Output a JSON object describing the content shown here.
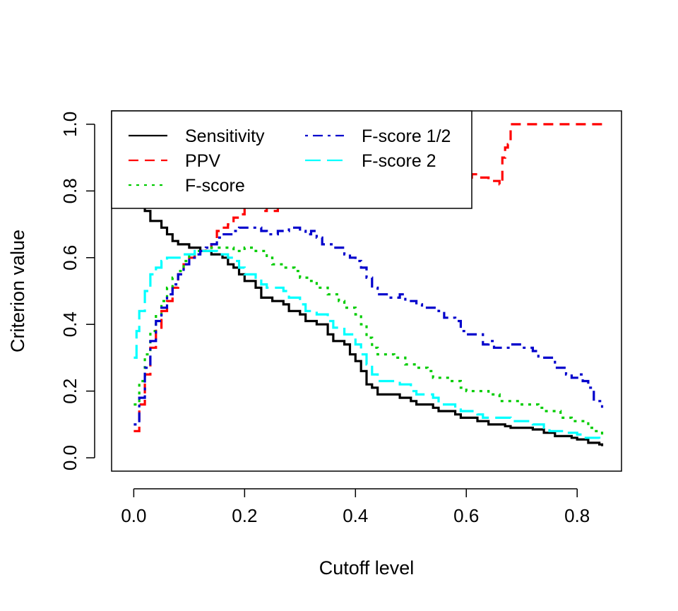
{
  "chart_data": {
    "type": "line",
    "title": "",
    "xlabel": "Cutoff level",
    "ylabel": "Criterion value",
    "xlim": [
      -0.04,
      0.88
    ],
    "ylim": [
      -0.04,
      1.04
    ],
    "x_ticks": [
      0.0,
      0.2,
      0.4,
      0.6,
      0.8
    ],
    "x_tick_labels": [
      "0.0",
      "0.2",
      "0.4",
      "0.6",
      "0.8"
    ],
    "y_ticks": [
      0.0,
      0.2,
      0.4,
      0.6,
      0.8,
      1.0
    ],
    "y_tick_labels": [
      "0.0",
      "0.2",
      "0.4",
      "0.6",
      "0.8",
      "1.0"
    ],
    "grid": false,
    "legend": {
      "position": "top-left",
      "columns": 2
    },
    "series": [
      {
        "name": "Sensitivity",
        "color": "#000000",
        "dash": "solid",
        "points": [
          [
            0.0,
            0.78
          ],
          [
            0.01,
            0.76
          ],
          [
            0.02,
            0.74
          ],
          [
            0.03,
            0.71
          ],
          [
            0.04,
            0.71
          ],
          [
            0.05,
            0.69
          ],
          [
            0.06,
            0.67
          ],
          [
            0.07,
            0.65
          ],
          [
            0.08,
            0.64
          ],
          [
            0.09,
            0.64
          ],
          [
            0.1,
            0.63
          ],
          [
            0.12,
            0.62
          ],
          [
            0.14,
            0.61
          ],
          [
            0.15,
            0.61
          ],
          [
            0.16,
            0.6
          ],
          [
            0.17,
            0.58
          ],
          [
            0.18,
            0.57
          ],
          [
            0.19,
            0.55
          ],
          [
            0.2,
            0.53
          ],
          [
            0.22,
            0.51
          ],
          [
            0.23,
            0.48
          ],
          [
            0.25,
            0.47
          ],
          [
            0.27,
            0.46
          ],
          [
            0.28,
            0.44
          ],
          [
            0.3,
            0.43
          ],
          [
            0.31,
            0.41
          ],
          [
            0.33,
            0.4
          ],
          [
            0.35,
            0.37
          ],
          [
            0.36,
            0.35
          ],
          [
            0.38,
            0.34
          ],
          [
            0.39,
            0.31
          ],
          [
            0.4,
            0.29
          ],
          [
            0.41,
            0.26
          ],
          [
            0.42,
            0.22
          ],
          [
            0.43,
            0.21
          ],
          [
            0.44,
            0.19
          ],
          [
            0.47,
            0.19
          ],
          [
            0.48,
            0.18
          ],
          [
            0.5,
            0.17
          ],
          [
            0.51,
            0.16
          ],
          [
            0.54,
            0.15
          ],
          [
            0.55,
            0.14
          ],
          [
            0.58,
            0.13
          ],
          [
            0.59,
            0.12
          ],
          [
            0.62,
            0.11
          ],
          [
            0.64,
            0.1
          ],
          [
            0.67,
            0.095
          ],
          [
            0.68,
            0.09
          ],
          [
            0.72,
            0.085
          ],
          [
            0.74,
            0.075
          ],
          [
            0.76,
            0.065
          ],
          [
            0.79,
            0.06
          ],
          [
            0.8,
            0.055
          ],
          [
            0.82,
            0.045
          ],
          [
            0.84,
            0.04
          ],
          [
            0.845,
            0.035
          ]
        ]
      },
      {
        "name": "PPV",
        "color": "#ff0000",
        "dash": "dashed",
        "points": [
          [
            0.0,
            0.08
          ],
          [
            0.01,
            0.16
          ],
          [
            0.02,
            0.25
          ],
          [
            0.03,
            0.33
          ],
          [
            0.04,
            0.39
          ],
          [
            0.05,
            0.44
          ],
          [
            0.06,
            0.47
          ],
          [
            0.07,
            0.51
          ],
          [
            0.08,
            0.55
          ],
          [
            0.09,
            0.58
          ],
          [
            0.1,
            0.6
          ],
          [
            0.11,
            0.61
          ],
          [
            0.12,
            0.62
          ],
          [
            0.13,
            0.63
          ],
          [
            0.14,
            0.64
          ],
          [
            0.15,
            0.68
          ],
          [
            0.16,
            0.69
          ],
          [
            0.17,
            0.7
          ],
          [
            0.18,
            0.72
          ],
          [
            0.19,
            0.73
          ],
          [
            0.2,
            0.75
          ],
          [
            0.22,
            0.75
          ],
          [
            0.23,
            0.74
          ],
          [
            0.24,
            0.75
          ],
          [
            0.25,
            0.74
          ],
          [
            0.26,
            0.76
          ],
          [
            0.27,
            0.78
          ],
          [
            0.28,
            0.8
          ],
          [
            0.3,
            0.81
          ],
          [
            0.32,
            0.82
          ],
          [
            0.35,
            0.84
          ],
          [
            0.38,
            0.83
          ],
          [
            0.4,
            0.84
          ],
          [
            0.45,
            0.84
          ],
          [
            0.5,
            0.85
          ],
          [
            0.55,
            0.84
          ],
          [
            0.6,
            0.84
          ],
          [
            0.61,
            0.85
          ],
          [
            0.62,
            0.84
          ],
          [
            0.64,
            0.83
          ],
          [
            0.65,
            0.83
          ],
          [
            0.66,
            0.82
          ],
          [
            0.665,
            0.9
          ],
          [
            0.67,
            0.93
          ],
          [
            0.675,
            0.94
          ],
          [
            0.68,
            1.0
          ],
          [
            0.845,
            1.0
          ]
        ]
      },
      {
        "name": "F-score",
        "color": "#00cc00",
        "dash": "dotted",
        "points": [
          [
            0.0,
            0.16
          ],
          [
            0.01,
            0.23
          ],
          [
            0.02,
            0.31
          ],
          [
            0.03,
            0.38
          ],
          [
            0.04,
            0.43
          ],
          [
            0.05,
            0.47
          ],
          [
            0.06,
            0.51
          ],
          [
            0.07,
            0.54
          ],
          [
            0.08,
            0.56
          ],
          [
            0.09,
            0.59
          ],
          [
            0.1,
            0.61
          ],
          [
            0.11,
            0.62
          ],
          [
            0.12,
            0.62
          ],
          [
            0.13,
            0.62
          ],
          [
            0.14,
            0.63
          ],
          [
            0.15,
            0.63
          ],
          [
            0.16,
            0.63
          ],
          [
            0.18,
            0.62
          ],
          [
            0.2,
            0.63
          ],
          [
            0.22,
            0.62
          ],
          [
            0.24,
            0.6
          ],
          [
            0.25,
            0.58
          ],
          [
            0.27,
            0.57
          ],
          [
            0.29,
            0.56
          ],
          [
            0.3,
            0.54
          ],
          [
            0.32,
            0.53
          ],
          [
            0.33,
            0.51
          ],
          [
            0.35,
            0.49
          ],
          [
            0.37,
            0.47
          ],
          [
            0.38,
            0.45
          ],
          [
            0.4,
            0.43
          ],
          [
            0.41,
            0.4
          ],
          [
            0.42,
            0.36
          ],
          [
            0.43,
            0.33
          ],
          [
            0.44,
            0.31
          ],
          [
            0.47,
            0.3
          ],
          [
            0.49,
            0.28
          ],
          [
            0.51,
            0.27
          ],
          [
            0.53,
            0.26
          ],
          [
            0.54,
            0.24
          ],
          [
            0.57,
            0.23
          ],
          [
            0.59,
            0.21
          ],
          [
            0.6,
            0.2
          ],
          [
            0.64,
            0.19
          ],
          [
            0.66,
            0.17
          ],
          [
            0.7,
            0.16
          ],
          [
            0.73,
            0.15
          ],
          [
            0.74,
            0.14
          ],
          [
            0.77,
            0.12
          ],
          [
            0.79,
            0.11
          ],
          [
            0.82,
            0.09
          ],
          [
            0.83,
            0.08
          ],
          [
            0.845,
            0.07
          ]
        ]
      },
      {
        "name": "F-score 1/2",
        "color": "#0000cc",
        "dash": "dashdot",
        "points": [
          [
            0.0,
            0.1
          ],
          [
            0.01,
            0.18
          ],
          [
            0.02,
            0.27
          ],
          [
            0.03,
            0.35
          ],
          [
            0.04,
            0.41
          ],
          [
            0.05,
            0.45
          ],
          [
            0.06,
            0.49
          ],
          [
            0.07,
            0.52
          ],
          [
            0.08,
            0.55
          ],
          [
            0.09,
            0.58
          ],
          [
            0.1,
            0.6
          ],
          [
            0.11,
            0.61
          ],
          [
            0.12,
            0.62
          ],
          [
            0.13,
            0.63
          ],
          [
            0.14,
            0.64
          ],
          [
            0.15,
            0.66
          ],
          [
            0.16,
            0.67
          ],
          [
            0.17,
            0.67
          ],
          [
            0.18,
            0.68
          ],
          [
            0.19,
            0.69
          ],
          [
            0.22,
            0.69
          ],
          [
            0.23,
            0.68
          ],
          [
            0.24,
            0.67
          ],
          [
            0.26,
            0.68
          ],
          [
            0.28,
            0.69
          ],
          [
            0.3,
            0.68
          ],
          [
            0.31,
            0.67
          ],
          [
            0.32,
            0.68
          ],
          [
            0.33,
            0.66
          ],
          [
            0.34,
            0.64
          ],
          [
            0.36,
            0.63
          ],
          [
            0.38,
            0.61
          ],
          [
            0.39,
            0.6
          ],
          [
            0.4,
            0.59
          ],
          [
            0.41,
            0.57
          ],
          [
            0.42,
            0.54
          ],
          [
            0.43,
            0.51
          ],
          [
            0.44,
            0.49
          ],
          [
            0.46,
            0.48
          ],
          [
            0.48,
            0.49
          ],
          [
            0.49,
            0.47
          ],
          [
            0.51,
            0.46
          ],
          [
            0.52,
            0.45
          ],
          [
            0.55,
            0.44
          ],
          [
            0.56,
            0.42
          ],
          [
            0.58,
            0.41
          ],
          [
            0.59,
            0.38
          ],
          [
            0.6,
            0.37
          ],
          [
            0.62,
            0.37
          ],
          [
            0.63,
            0.34
          ],
          [
            0.64,
            0.35
          ],
          [
            0.65,
            0.33
          ],
          [
            0.67,
            0.33
          ],
          [
            0.68,
            0.34
          ],
          [
            0.7,
            0.33
          ],
          [
            0.72,
            0.32
          ],
          [
            0.73,
            0.3
          ],
          [
            0.75,
            0.3
          ],
          [
            0.76,
            0.27
          ],
          [
            0.78,
            0.25
          ],
          [
            0.79,
            0.24
          ],
          [
            0.8,
            0.25
          ],
          [
            0.81,
            0.23
          ],
          [
            0.82,
            0.21
          ],
          [
            0.83,
            0.17
          ],
          [
            0.845,
            0.15
          ]
        ]
      },
      {
        "name": "F-score 2",
        "color": "#00ffff",
        "dash": "longdash",
        "points": [
          [
            0.0,
            0.3
          ],
          [
            0.005,
            0.38
          ],
          [
            0.01,
            0.44
          ],
          [
            0.02,
            0.5
          ],
          [
            0.03,
            0.55
          ],
          [
            0.04,
            0.57
          ],
          [
            0.05,
            0.59
          ],
          [
            0.06,
            0.6
          ],
          [
            0.07,
            0.6
          ],
          [
            0.08,
            0.6
          ],
          [
            0.09,
            0.61
          ],
          [
            0.1,
            0.61
          ],
          [
            0.11,
            0.62
          ],
          [
            0.12,
            0.62
          ],
          [
            0.14,
            0.62
          ],
          [
            0.15,
            0.61
          ],
          [
            0.16,
            0.61
          ],
          [
            0.17,
            0.6
          ],
          [
            0.18,
            0.59
          ],
          [
            0.19,
            0.57
          ],
          [
            0.2,
            0.55
          ],
          [
            0.22,
            0.54
          ],
          [
            0.23,
            0.52
          ],
          [
            0.24,
            0.51
          ],
          [
            0.27,
            0.5
          ],
          [
            0.28,
            0.48
          ],
          [
            0.3,
            0.46
          ],
          [
            0.31,
            0.44
          ],
          [
            0.33,
            0.43
          ],
          [
            0.35,
            0.41
          ],
          [
            0.36,
            0.39
          ],
          [
            0.38,
            0.37
          ],
          [
            0.4,
            0.34
          ],
          [
            0.41,
            0.31
          ],
          [
            0.42,
            0.28
          ],
          [
            0.43,
            0.25
          ],
          [
            0.44,
            0.23
          ],
          [
            0.48,
            0.22
          ],
          [
            0.5,
            0.2
          ],
          [
            0.51,
            0.19
          ],
          [
            0.54,
            0.18
          ],
          [
            0.55,
            0.16
          ],
          [
            0.58,
            0.15
          ],
          [
            0.59,
            0.14
          ],
          [
            0.62,
            0.13
          ],
          [
            0.63,
            0.12
          ],
          [
            0.66,
            0.12
          ],
          [
            0.68,
            0.11
          ],
          [
            0.72,
            0.1
          ],
          [
            0.74,
            0.09
          ],
          [
            0.75,
            0.08
          ],
          [
            0.78,
            0.075
          ],
          [
            0.8,
            0.07
          ],
          [
            0.81,
            0.06
          ],
          [
            0.84,
            0.055
          ],
          [
            0.845,
            0.05
          ]
        ]
      }
    ]
  }
}
